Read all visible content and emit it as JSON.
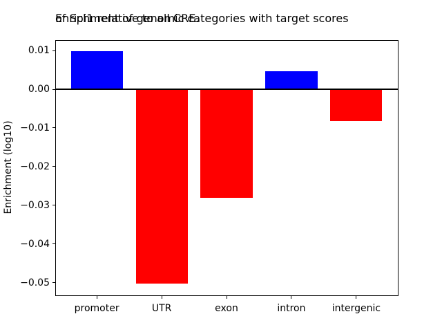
{
  "figure": {
    "title_lines": [
      "Enrichment of genomic categories with target scores",
      "of Spi1 relative to all CRE."
    ],
    "ylabel": "Enrichment (log10)"
  },
  "chart_data": {
    "type": "bar",
    "title": "Enrichment of genomic categories with target scores of Spi1 relative to all CRE.",
    "xlabel": "",
    "ylabel": "Enrichment (log10)",
    "categories": [
      "promoter",
      "UTR",
      "exon",
      "intron",
      "intergenic"
    ],
    "values": [
      0.0098,
      -0.0503,
      -0.028,
      0.0046,
      -0.0082
    ],
    "bar_colors": [
      "#0000ff",
      "#ff0000",
      "#ff0000",
      "#0000ff",
      "#ff0000"
    ],
    "positive_color": "#0000ff",
    "negative_color": "#ff0000",
    "ylim": [
      -0.0533,
      0.0127
    ],
    "yticks": [
      {
        "label": "0.01",
        "value": 0.01
      },
      {
        "label": "0.00",
        "value": 0.0
      },
      {
        "label": "−0.01",
        "value": -0.01
      },
      {
        "label": "−0.02",
        "value": -0.02
      },
      {
        "label": "−0.03",
        "value": -0.03
      },
      {
        "label": "−0.04",
        "value": -0.04
      },
      {
        "label": "−0.05",
        "value": -0.05
      }
    ],
    "grid": false,
    "legend": false,
    "zero_line": true
  }
}
